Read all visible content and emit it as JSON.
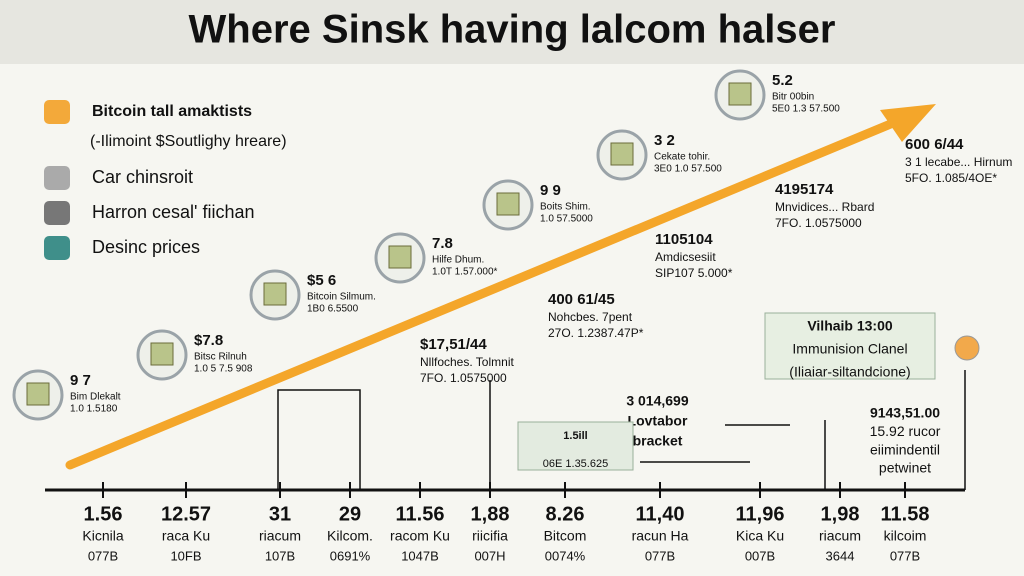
{
  "title": "Where Sinsk having lalcom halser",
  "legend": [
    "Bitcoin tall amaktists",
    "(-Ilimoint $Soutlighy hreare)",
    "Car chinsroit",
    "Harron cesal' fiichan",
    "Desinc prices"
  ],
  "milestones": [
    {
      "value": "9 7",
      "name": "Bim Dlekalt",
      "code": "1.0 1.5180"
    },
    {
      "value": "$7.8",
      "name": "Bitsc Rilnuh",
      "code": "1.0 5 7.5 908"
    },
    {
      "value": "$5 6",
      "name": "Bitcoin Silmum.",
      "code": "1B0 6.5500"
    },
    {
      "value": "7.8",
      "name": "Hilfe Dhum.",
      "code": "1.0T 1.57.000*"
    },
    {
      "value": "9 9",
      "name": "Boits Shim.",
      "code": "1.0 57.5000"
    },
    {
      "value": "3 2",
      "name": "Cekate tohir.",
      "code": "3E0 1.0 57.500"
    },
    {
      "value": "5.2",
      "name": "Bitr 00bin",
      "code": "5E0 1.3 57.500"
    }
  ],
  "notes": [
    {
      "value": "600 6/44",
      "name": "3 1 lecabe... Hirnum",
      "code": "5FO. 1.085/4OE*"
    },
    {
      "value": "4195174",
      "name": "Mnvidices... Rbard",
      "code": "7FO. 1.0575000"
    },
    {
      "value": "1105104",
      "name": "Amdicsesiit",
      "code": "SIP107 5.000*"
    },
    {
      "value": "400 61/45",
      "name": "Nohcbes. 7pent",
      "code": "27O. 1.2387.47P*"
    },
    {
      "value": "$17,51/44",
      "name": "Nllfoches. Tolmnit",
      "code": "7FO. 1.0575000"
    }
  ],
  "boxes": [
    {
      "lines": [
        "Vilhaib 13:00",
        "Immunision Clanel",
        "(Iliaiar-siltandcione)"
      ]
    },
    {
      "lines": [
        "3 014,699",
        "Lovtabor",
        "bracket"
      ]
    },
    {
      "lines": [
        "9143,51.00",
        "15.92 rucor",
        "eiimindentil",
        "petwinet"
      ]
    },
    {
      "lines": [
        "1.5ill",
        "06E 1.35.625"
      ]
    }
  ],
  "axis": [
    {
      "value": "1.56",
      "name": "Kicnila",
      "code": "077B"
    },
    {
      "value": "12.57",
      "name": "raca Ku",
      "code": "10FB"
    },
    {
      "value": "31",
      "name": "riacum",
      "code": "107B"
    },
    {
      "value": "29",
      "name": "Kilcom.",
      "code": "0691%"
    },
    {
      "value": "11.56",
      "name": "racom Ku",
      "code": "1047B"
    },
    {
      "value": "1,88",
      "name": "riicifia",
      "code": "007H"
    },
    {
      "value": "8.26",
      "name": "Bitcom",
      "code": "0074%"
    },
    {
      "value": "11,40",
      "name": "racun Ha",
      "code": "077B"
    },
    {
      "value": "11,96",
      "name": "Kica Ku",
      "code": "007B"
    },
    {
      "value": "1,98",
      "name": "riacum",
      "code": "3644"
    },
    {
      "value": "11.58",
      "name": "kilcoim",
      "code": "077B"
    }
  ]
}
